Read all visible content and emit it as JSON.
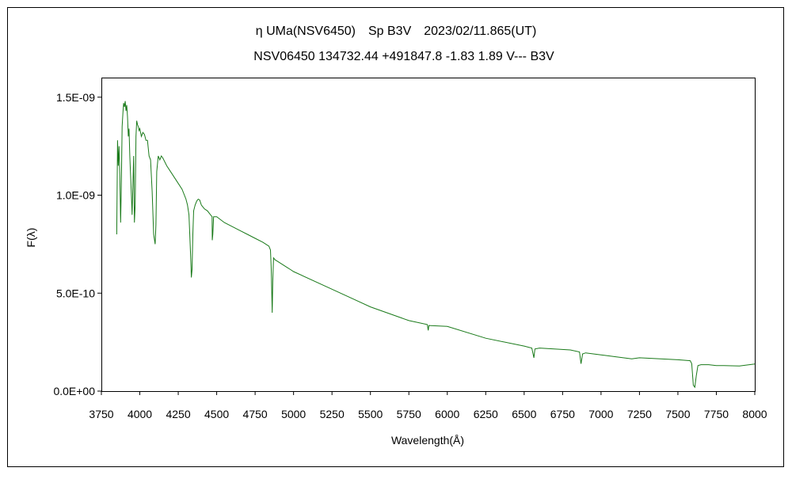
{
  "chart_data": {
    "type": "line",
    "title": "η UMa(NSV6450)　Sp B3V　2023/02/11.865(UT)",
    "subtitle": "NSV06450 134732.44 +491847.8 -1.83 1.89 V--- B3V",
    "xlabel": "Wavelength(Å)",
    "ylabel": "F(λ)",
    "xlim": [
      3750,
      8000
    ],
    "ylim": [
      0,
      1.6e-09
    ],
    "x_ticks": [
      "3750",
      "4000",
      "4250",
      "4500",
      "4750",
      "5000",
      "5250",
      "5500",
      "5750",
      "6000",
      "6250",
      "6500",
      "6750",
      "7000",
      "7250",
      "7500",
      "7750",
      "8000"
    ],
    "y_ticks": [
      {
        "value": 0,
        "label": "0.0E+00"
      },
      {
        "value": 5e-10,
        "label": "5.0E-10"
      },
      {
        "value": 1e-09,
        "label": "1.0E-09"
      },
      {
        "value": 1.5e-09,
        "label": "1.5E-09"
      }
    ],
    "grid": false,
    "series_color": "#1a7a1a",
    "series": [
      {
        "x": [
          3850,
          3855,
          3860,
          3865,
          3870,
          3875,
          3880,
          3885,
          3890,
          3895,
          3900,
          3905,
          3910,
          3915,
          3920,
          3925,
          3930,
          3935,
          3940,
          3945,
          3950,
          3955,
          3960,
          3965,
          3970,
          3975,
          3980,
          3985,
          3990,
          3995,
          4000,
          4010,
          4020,
          4030,
          4040,
          4050,
          4060,
          4070,
          4080,
          4090,
          4100,
          4105,
          4110,
          4120,
          4130,
          4140,
          4150,
          4175,
          4200,
          4225,
          4250,
          4275,
          4300,
          4310,
          4320,
          4330,
          4335,
          4340,
          4345,
          4350,
          4360,
          4370,
          4380,
          4390,
          4400,
          4420,
          4440,
          4460,
          4470,
          4471,
          4475,
          4480,
          4500,
          4550,
          4600,
          4650,
          4700,
          4750,
          4800,
          4820,
          4840,
          4850,
          4855,
          4861,
          4865,
          4870,
          4880,
          4900,
          4920,
          4940,
          4960,
          4980,
          5000,
          5250,
          5500,
          5750,
          5870,
          5876,
          5880,
          6000,
          6250,
          6500,
          6550,
          6563,
          6570,
          6600,
          6800,
          6860,
          6870,
          6880,
          6900,
          7000,
          7100,
          7200,
          7250,
          7300,
          7500,
          7580,
          7590,
          7600,
          7610,
          7620,
          7630,
          7650,
          7700,
          7750,
          7800,
          7900,
          8000
        ],
        "y": [
          8e-10,
          1.28e-09,
          1.15e-09,
          1.25e-09,
          1.1e-09,
          8.6e-10,
          1.05e-09,
          1.35e-09,
          1.42e-09,
          1.47e-09,
          1.45e-09,
          1.48e-09,
          1.43e-09,
          1.46e-09,
          1.4e-09,
          1.3e-09,
          1.34e-09,
          1.2e-09,
          1.1e-09,
          1e-09,
          9e-10,
          1.05e-09,
          1.2e-09,
          8.6e-10,
          9.5e-10,
          1.3e-09,
          1.38e-09,
          1.36e-09,
          1.35e-09,
          1.33e-09,
          1.34e-09,
          1.3e-09,
          1.32e-09,
          1.31e-09,
          1.28e-09,
          1.28e-09,
          1.2e-09,
          1.18e-09,
          1.02e-09,
          8e-10,
          7.5e-10,
          8.5e-10,
          1.12e-09,
          1.2e-09,
          1.18e-09,
          1.2e-09,
          1.19e-09,
          1.15e-09,
          1.12e-09,
          1.09e-09,
          1.06e-09,
          1.03e-09,
          9.8e-10,
          9.5e-10,
          9e-10,
          7e-10,
          5.8e-10,
          6.2e-10,
          8e-10,
          9.2e-10,
          9.5e-10,
          9.7e-10,
          9.8e-10,
          9.75e-10,
          9.5e-10,
          9.3e-10,
          9.2e-10,
          9e-10,
          8.9e-10,
          7.7e-10,
          8e-10,
          8.9e-10,
          8.9e-10,
          8.6e-10,
          8.4e-10,
          8.2e-10,
          8e-10,
          7.8e-10,
          7.6e-10,
          7.5e-10,
          7.4e-10,
          7.2e-10,
          6.2e-10,
          4e-10,
          5.6e-10,
          6.8e-10,
          6.7e-10,
          6.6e-10,
          6.5e-10,
          6.4e-10,
          6.3e-10,
          6.2e-10,
          6.1e-10,
          5.2e-10,
          4.3e-10,
          3.6e-10,
          3.4e-10,
          3.1e-10,
          3.35e-10,
          3.3e-10,
          2.7e-10,
          2.3e-10,
          2.2e-10,
          1.7e-10,
          2.15e-10,
          2.2e-10,
          2.1e-10,
          2e-10,
          1.4e-10,
          1.9e-10,
          1.95e-10,
          1.85e-10,
          1.75e-10,
          1.65e-10,
          1.7e-10,
          1.68e-10,
          1.6e-10,
          1.55e-10,
          1.4e-10,
          3e-11,
          2e-11,
          8e-11,
          1.3e-10,
          1.35e-10,
          1.35e-10,
          1.3e-10,
          1.3e-10,
          1.28e-10,
          1.38e-10
        ]
      }
    ]
  }
}
